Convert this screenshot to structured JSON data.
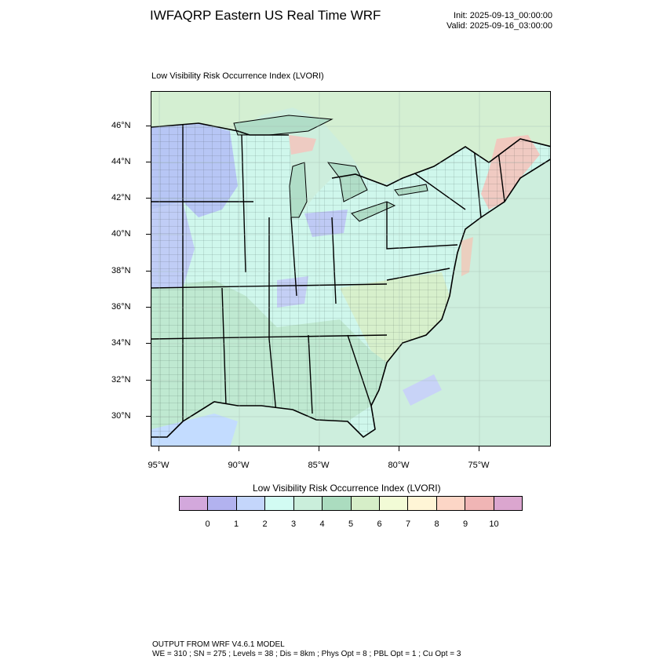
{
  "header": {
    "title": "IWFAQRP Eastern US Real Time WRF",
    "init": "Init: 2025-09-13_00:00:00",
    "valid": "Valid: 2025-09-16_03:00:00"
  },
  "map": {
    "subtitle": "Low Visibility Risk Occurrence Index   (LVORI)",
    "lat_labels": [
      "46°N",
      "44°N",
      "42°N",
      "40°N",
      "38°N",
      "36°N",
      "34°N",
      "32°N",
      "30°N"
    ],
    "lon_labels": [
      "95°W",
      "90°W",
      "85°W",
      "80°W",
      "75°W"
    ],
    "colors": {
      "ocean": "#cdeedd",
      "land_base": "#cff7ec",
      "gulf": "#c3dcff",
      "low_zone": "#b7c6f5",
      "moderate_zone": "#b8e6cc",
      "high_zone": "#f6c2bb",
      "coast_land": "#d8efd0"
    }
  },
  "legend": {
    "title": "Low Visibility Risk Occurrence Index  (LVORI)",
    "labels": [
      "0",
      "1",
      "2",
      "3",
      "4",
      "5",
      "6",
      "7",
      "8",
      "9",
      "10"
    ],
    "colors": [
      "#d3a8dc",
      "#b2b2ef",
      "#c4d6fb",
      "#d2fbf3",
      "#caeedb",
      "#abdcbf",
      "#d6eec8",
      "#f2fbd6",
      "#fff5d6",
      "#fcd6c6",
      "#f0b5b5",
      "#dba6cf"
    ]
  },
  "footer": {
    "line1": "OUTPUT FROM WRF V4.6.1 MODEL",
    "line2": "WE = 310 ; SN = 275 ; Levels = 38 ; Dis = 8km ; Phys Opt = 8 ; PBL Opt = 1 ; Cu Opt = 3"
  }
}
